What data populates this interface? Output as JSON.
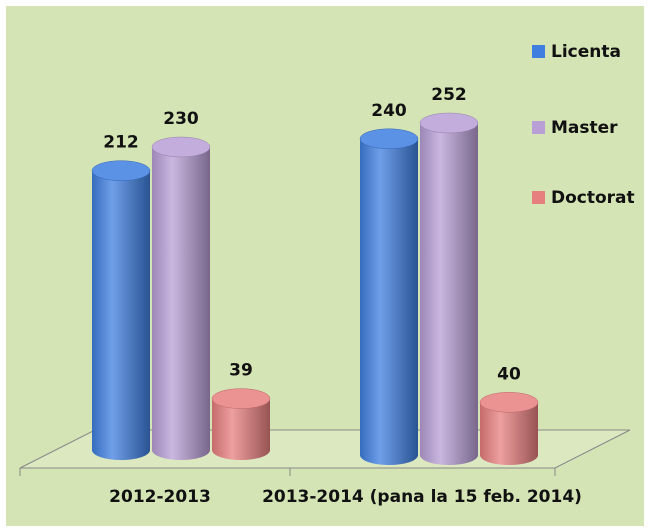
{
  "chart_data": {
    "type": "bar3d",
    "categories": [
      "2012-2013",
      "2013-2014 (pana la 15 feb. 2014)"
    ],
    "series": [
      {
        "name": "Licenta",
        "color": "#3f7fe0",
        "values": [
          212,
          240
        ]
      },
      {
        "name": "Master",
        "color": "#b89fd6",
        "values": [
          230,
          252
        ]
      },
      {
        "name": "Doctorat",
        "color": "#e87f7f",
        "values": [
          39,
          40
        ]
      }
    ],
    "legend": "right"
  }
}
